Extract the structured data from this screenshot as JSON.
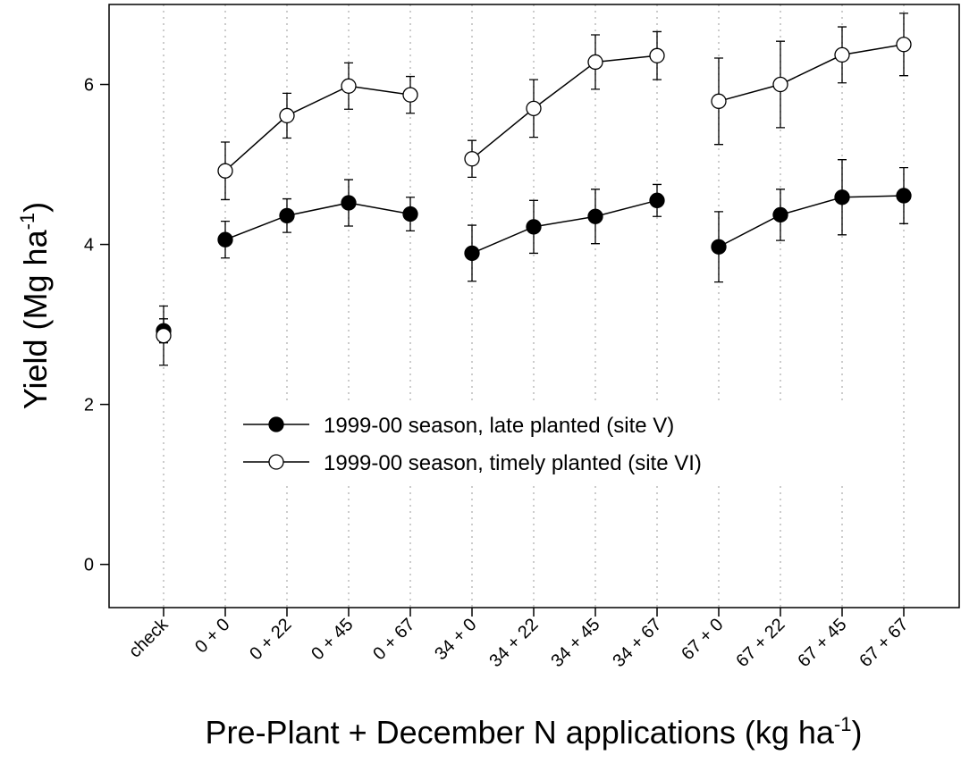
{
  "chart_data": {
    "type": "line",
    "x_label": {
      "text": "Pre-Plant + December N applications (kg ha",
      "superscript": "-1",
      "close": ")"
    },
    "y_label": {
      "text": "Yield (Mg ha",
      "superscript": "-1",
      "close": ")"
    },
    "categories": [
      "check",
      "0 + 0",
      "0 + 22",
      "0 + 45",
      "0 + 67",
      "34 + 0",
      "34 + 22",
      "34 + 45",
      "34 + 67",
      "67 + 0",
      "67 + 22",
      "67 + 45",
      "67 + 67"
    ],
    "series": [
      {
        "name": "1999-00 season, late planted (site V)",
        "color": "#000000",
        "marker": "filled",
        "values": [
          2.92,
          4.06,
          4.36,
          4.52,
          4.38,
          3.89,
          4.22,
          4.35,
          4.55,
          3.97,
          4.37,
          4.59,
          4.61
        ],
        "errors": [
          0.15,
          0.23,
          0.21,
          0.29,
          0.21,
          0.35,
          0.33,
          0.34,
          0.2,
          0.44,
          0.32,
          0.47,
          0.35
        ]
      },
      {
        "name": "1999-00 season, timely planted (site VI)",
        "color": "#000000",
        "marker": "open",
        "values": [
          2.86,
          4.92,
          5.61,
          5.98,
          5.87,
          5.07,
          5.7,
          6.28,
          6.36,
          5.79,
          6.0,
          6.37,
          6.5
        ],
        "errors": [
          0.37,
          0.36,
          0.28,
          0.29,
          0.23,
          0.23,
          0.36,
          0.34,
          0.3,
          0.54,
          0.54,
          0.35,
          0.39
        ]
      }
    ],
    "ylim": [
      -0.54,
      7.0
    ],
    "yticks": [
      0,
      2,
      4,
      6
    ],
    "grid": "vertical-dotted",
    "legend": "center"
  }
}
